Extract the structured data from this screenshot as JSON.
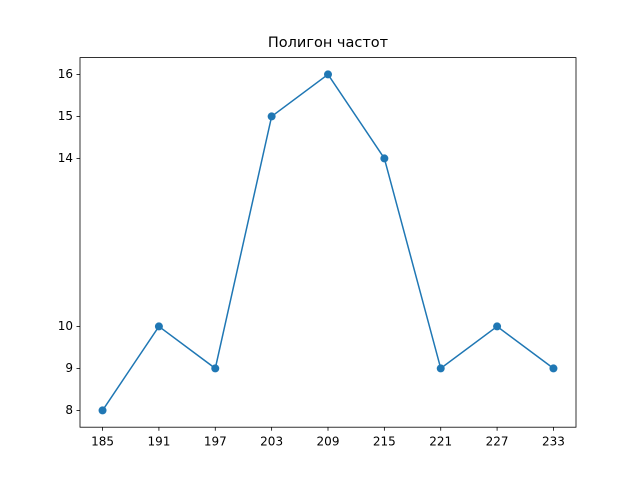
{
  "chart_data": {
    "type": "line",
    "title": "Полигон частот",
    "x": [
      185,
      191,
      197,
      203,
      209,
      215,
      221,
      227,
      233
    ],
    "series": [
      {
        "color": "#1f77b4",
        "values": [
          8,
          10,
          9,
          15,
          16,
          14,
          9,
          10,
          9
        ]
      }
    ],
    "xlim": [
      182.6,
      235.4
    ],
    "xticks": [
      185,
      191,
      197,
      203,
      209,
      215,
      221,
      227,
      233
    ],
    "ylim": [
      7.6,
      16.4
    ],
    "yticks": [
      8,
      9,
      10,
      14,
      15,
      16
    ]
  }
}
